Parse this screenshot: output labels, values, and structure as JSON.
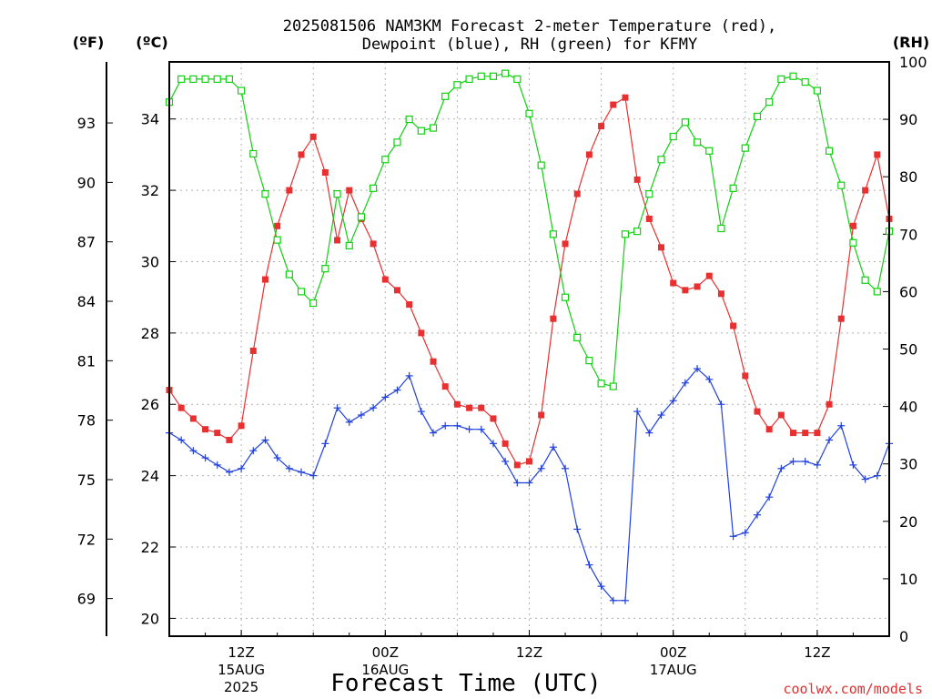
{
  "chart_data": {
    "type": "line",
    "title_line1": "2025081506 NAM3KM Forecast 2-meter Temperature (red),",
    "title_line2": "Dewpoint (blue), RH (green) for KFMY",
    "xlabel": "Forecast Time (UTC)",
    "credit": "coolwx.com/models",
    "left_unit_f": "(ºF)",
    "left_unit_c": "(ºC)",
    "right_unit": "(RH)",
    "ylim_c": [
      19.5,
      35.6
    ],
    "ylim_rh": [
      0,
      100
    ],
    "xlim_hours": [
      6,
      66
    ],
    "fahrenheit_ticks": [
      "69",
      "72",
      "75",
      "78",
      "81",
      "84",
      "87",
      "90",
      "93"
    ],
    "celsius_ticks": [
      "20",
      "22",
      "24",
      "26",
      "28",
      "30",
      "32",
      "34"
    ],
    "rh_ticks": [
      "0",
      "10",
      "20",
      "30",
      "40",
      "50",
      "60",
      "70",
      "80",
      "90",
      "100"
    ],
    "x_ticks": [
      {
        "hour": 12,
        "line1": "12Z",
        "line2": "15AUG",
        "line3": "2025"
      },
      {
        "hour": 24,
        "line1": "00Z",
        "line2": "16AUG",
        "line3": ""
      },
      {
        "hour": 36,
        "line1": "12Z",
        "line2": "",
        "line3": ""
      },
      {
        "hour": 48,
        "line1": "00Z",
        "line2": "17AUG",
        "line3": ""
      },
      {
        "hour": 60,
        "line1": "12Z",
        "line2": "",
        "line3": ""
      }
    ],
    "x_grid_hours": [
      12,
      18,
      24,
      30,
      36,
      42,
      48,
      54,
      60
    ],
    "hours": [
      6,
      7,
      8,
      9,
      10,
      11,
      12,
      13,
      14,
      15,
      16,
      17,
      18,
      19,
      20,
      21,
      22,
      23,
      24,
      25,
      26,
      27,
      28,
      29,
      30,
      31,
      32,
      33,
      34,
      35,
      36,
      37,
      38,
      39,
      40,
      41,
      42,
      43,
      44,
      45,
      46,
      47,
      48,
      49,
      50,
      51,
      52,
      53,
      54,
      55,
      56,
      57,
      58,
      59,
      60,
      61,
      62,
      63,
      64,
      65,
      66
    ],
    "series": [
      {
        "color": "#e83030",
        "marker": "filled-square",
        "axis": "celsius",
        "values": [
          26.4,
          25.9,
          25.6,
          25.3,
          25.2,
          25.0,
          25.4,
          27.5,
          29.5,
          31.0,
          32.0,
          33.0,
          33.5,
          32.5,
          30.6,
          32.0,
          31.2,
          30.5,
          29.5,
          29.2,
          28.8,
          28.0,
          27.2,
          26.5,
          26.0,
          25.9,
          25.9,
          25.6,
          24.9,
          24.3,
          24.4,
          25.7,
          28.4,
          30.5,
          31.9,
          33.0,
          33.8,
          34.4,
          34.6,
          32.3,
          31.2,
          30.4,
          29.4,
          29.2,
          29.3,
          29.6,
          29.1,
          28.2,
          26.8,
          25.8,
          25.3,
          25.7,
          25.2,
          25.2,
          25.2,
          26.0,
          28.4,
          31.0,
          32.0,
          33.0,
          31.2
        ]
      },
      {
        "color": "#2040e0",
        "marker": "plus",
        "axis": "celsius",
        "values": [
          25.2,
          25.0,
          24.7,
          24.5,
          24.3,
          24.1,
          24.2,
          24.7,
          25.0,
          24.5,
          24.2,
          24.1,
          24.0,
          24.9,
          25.9,
          25.5,
          25.7,
          25.9,
          26.2,
          26.4,
          26.8,
          25.8,
          25.2,
          25.4,
          25.4,
          25.3,
          25.3,
          24.9,
          24.4,
          23.8,
          23.8,
          24.2,
          24.8,
          24.2,
          22.5,
          21.5,
          20.9,
          20.5,
          20.5,
          25.8,
          25.2,
          25.7,
          26.1,
          26.6,
          27.0,
          26.7,
          26.0,
          22.3,
          22.4,
          22.9,
          23.4,
          24.2,
          24.4,
          24.4,
          24.3,
          25.0,
          25.4,
          24.3,
          23.9,
          24.0,
          24.9
        ]
      },
      {
        "color": "#10d010",
        "marker": "open-square",
        "axis": "rh",
        "values": [
          93,
          97,
          97,
          97,
          97,
          97,
          95,
          84,
          77,
          69,
          63,
          60,
          58,
          64,
          77,
          68,
          73,
          78,
          83,
          86,
          90,
          88,
          88.5,
          94,
          96,
          97,
          97.5,
          97.5,
          98,
          97,
          91,
          82,
          70,
          59,
          52,
          48,
          44,
          43.5,
          70,
          70.5,
          77,
          83,
          87,
          89.5,
          86,
          84.5,
          71,
          78,
          85,
          90.5,
          93,
          97,
          97.5,
          96.5,
          95,
          84.5,
          78.5,
          68.5,
          62,
          60,
          70.5
        ]
      }
    ]
  }
}
